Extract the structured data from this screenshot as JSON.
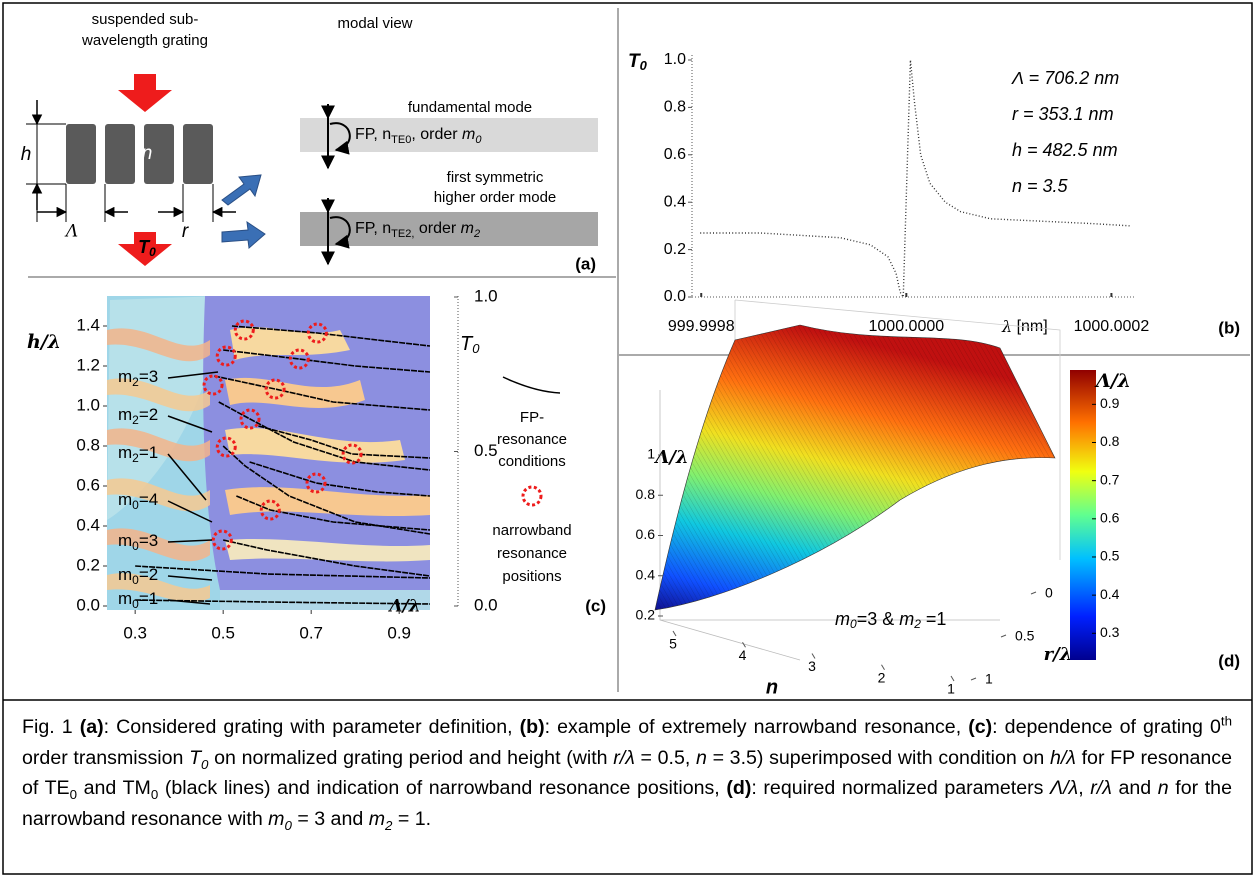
{
  "panel_a": {
    "grating_title": [
      "suspended sub-",
      "wavelength grating"
    ],
    "h": "h",
    "n": "n",
    "period": "Λ",
    "r": "r",
    "T": "T",
    "T_sub": "0",
    "modal_title": "modal view",
    "mode1_title": "fundamental mode",
    "mode1": [
      "FP,  n",
      "TE0",
      ",  order ",
      "m",
      "0"
    ],
    "mode2_title": [
      "first symmetric",
      "higher order mode"
    ],
    "mode2": [
      "FP,  n",
      "TE2,",
      " order ",
      "m",
      "2"
    ],
    "label": "(a)"
  },
  "panel_b": {
    "y_label": [
      "T",
      "0"
    ],
    "x_label": [
      "λ",
      " [nm]"
    ],
    "annotations": [
      "Λ  = 706.2 nm",
      "r = 353.1 nm",
      "h = 482.5 nm",
      "n = 3.5"
    ],
    "label": "(b)",
    "x": [
      999.999799,
      999.999858,
      999.999897,
      999.999936,
      999.999965,
      999.999982,
      999.99999,
      999.999994,
      999.999997,
      1000.000004,
      1000.000008,
      1000.000014,
      1000.000023,
      1000.000038,
      1000.000053,
      1000.000082,
      1000.000131,
      1000.00018,
      1000.000219
    ],
    "values": [
      0.27,
      0.27,
      0.26,
      0.25,
      0.22,
      0.17,
      0.1,
      0.02,
      0,
      1,
      0.82,
      0.6,
      0.48,
      0.4,
      0.36,
      0.33,
      0.32,
      0.31,
      0.3
    ],
    "xlim": [
      999.999791,
      1000.000223
    ],
    "ylim": [
      0,
      1
    ],
    "xticks": [
      999.9998,
      {
        "value": 1000,
        "label": "1000.0000"
      },
      1000.0002
    ],
    "yticks": [
      {
        "value": 0,
        "label": "0.0"
      },
      0.2,
      0.4,
      0.6,
      0.8,
      {
        "value": 1,
        "label": "1.0"
      }
    ]
  },
  "panel_c": {
    "y_label": "h/λ",
    "x_label": "Λ/λ",
    "label": "(c)",
    "xlim": [
      0.236,
      0.97
    ],
    "ylim": [
      -0.02,
      1.55
    ],
    "xticks": [
      0.3,
      0.5,
      0.7,
      0.9
    ],
    "yticks": [
      {
        "value": 0,
        "label": "0.0"
      },
      0.2,
      0.4,
      0.6,
      0.8,
      {
        "value": 1,
        "label": "1.0"
      },
      1.2,
      1.4
    ],
    "colorbar": {
      "label": [
        "T",
        "0"
      ],
      "lim": [
        0,
        1
      ],
      "ticks": [
        {
          "value": 0,
          "label": "0.0"
        },
        0.5,
        {
          "value": 1,
          "label": "1.0"
        }
      ]
    },
    "mode_labels": [
      [
        "m",
        "2",
        "=3"
      ],
      [
        "m",
        "2",
        "=2"
      ],
      [
        "m",
        "2",
        "=1"
      ],
      [
        "m",
        "0",
        "=4"
      ],
      [
        "m",
        "0",
        "=3"
      ],
      [
        "m",
        "0",
        "=2"
      ],
      [
        "m",
        "0",
        "=1"
      ]
    ],
    "fp_legend": [
      "FP-",
      "resonance",
      "conditions"
    ],
    "nb_legend": [
      "narrowband",
      "resonance",
      "positions"
    ],
    "resonances": {
      "x": [
        0.548,
        0.714,
        0.507,
        0.673,
        0.477,
        0.618,
        0.561,
        0.507,
        0.793,
        0.711,
        0.607,
        0.498
      ],
      "y": [
        1.38,
        1.365,
        1.25,
        1.235,
        1.105,
        1.085,
        0.935,
        0.795,
        0.76,
        0.615,
        0.48,
        0.33
      ]
    },
    "fp_lines": [
      {
        "x": [
          0.5,
          0.6,
          0.8,
          0.97
        ],
        "y": [
          0.33,
          0.28,
          0.2,
          0.15
        ]
      },
      {
        "x": [
          0.53,
          0.607,
          0.75,
          0.97
        ],
        "y": [
          0.55,
          0.48,
          0.42,
          0.38
        ]
      },
      {
        "x": [
          0.56,
          0.711,
          0.85,
          0.97
        ],
        "y": [
          0.72,
          0.615,
          0.57,
          0.55
        ]
      },
      {
        "x": [
          0.58,
          0.7,
          0.793,
          0.97
        ],
        "y": [
          0.9,
          0.83,
          0.76,
          0.74
        ]
      },
      {
        "x": [
          0.5,
          0.55,
          0.65,
          0.8,
          0.97
        ],
        "y": [
          0.8,
          0.7,
          0.55,
          0.42,
          0.36
        ]
      },
      {
        "x": [
          0.49,
          0.561,
          0.66,
          0.8,
          0.97
        ],
        "y": [
          1.02,
          0.935,
          0.82,
          0.72,
          0.68
        ]
      },
      {
        "x": [
          0.48,
          0.618,
          0.75,
          0.97
        ],
        "y": [
          1.15,
          1.085,
          1.02,
          0.98
        ]
      },
      {
        "x": [
          0.5,
          0.673,
          0.8,
          0.97
        ],
        "y": [
          1.28,
          1.235,
          1.2,
          1.17
        ]
      },
      {
        "x": [
          0.52,
          0.714,
          0.85,
          0.97
        ],
        "y": [
          1.4,
          1.365,
          1.33,
          1.3
        ]
      },
      {
        "x": [
          0.3,
          0.6,
          0.97
        ],
        "y": [
          0.2,
          0.16,
          0.14
        ]
      },
      {
        "x": [
          0.3,
          0.6,
          0.97
        ],
        "y": [
          0.03,
          0.02,
          0.01
        ]
      }
    ]
  },
  "panel_d": {
    "z_label": "Λ/λ",
    "zlim": [
      0.2,
      1
    ],
    "zticks": [
      0.2,
      0.4,
      0.6,
      0.8,
      1
    ],
    "n_label": "n",
    "nlim": [
      5,
      1
    ],
    "nticks": [
      5,
      4,
      3,
      2,
      1
    ],
    "r_label": "r/λ",
    "rlim": [
      0,
      1
    ],
    "rticks": [
      0,
      0.5,
      1
    ],
    "annotation": [
      "m",
      "0",
      "=3 & ",
      "m",
      "2",
      " =1"
    ],
    "label": "(d)",
    "colorbar": {
      "label": "Λ/λ",
      "lim": [
        0.23,
        0.99
      ],
      "ticks": [
        0.3,
        0.4,
        0.5,
        0.6,
        0.7,
        0.8,
        0.9
      ]
    }
  },
  "caption": [
    "Fig. 1 ",
    "(a)",
    ": Considered grating with parameter definition, ",
    "(b)",
    ": example of extremely narrowband resonance, ",
    "(c)",
    ": dependence of grating 0",
    "th",
    " order transmission ",
    "T",
    "0",
    " on normalized grating period and height (with ",
    "r/λ",
    " = 0.5, ",
    "n",
    " = 3.5) superimposed with condition on ",
    "h/λ",
    " for FP resonance of TE",
    "0",
    " and TM",
    "0",
    " (black lines) and indication of narrowband resonance positions, ",
    "(d)",
    ": required normalized parameters ",
    "Λ/λ",
    ", ",
    "r/λ",
    " and ",
    "n",
    " for the narrowband resonance with ",
    "m",
    "0",
    " = 3 and ",
    "m",
    "2",
    " = 1."
  ]
}
